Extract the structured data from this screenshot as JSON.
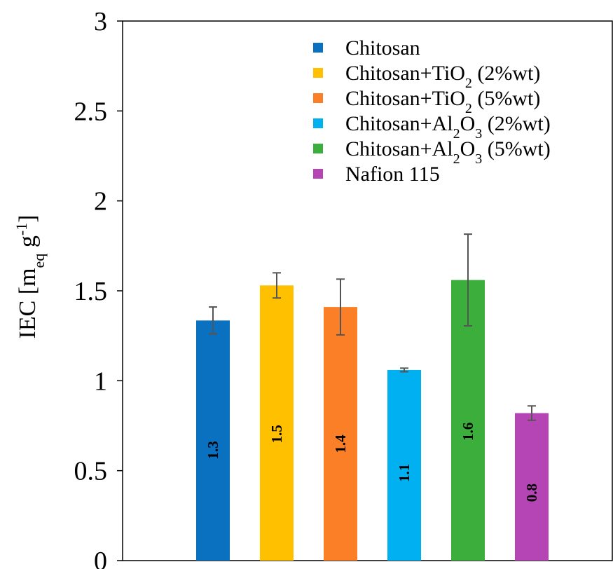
{
  "chart_data": {
    "type": "bar",
    "ylabel": "IEC [m_eq g^-1]",
    "ylabel_parts": {
      "main": "IEC [m",
      "sub": "eq",
      "mid": " g",
      "sup": "-1",
      "end": "]"
    },
    "ylim": [
      0,
      3
    ],
    "yticks": [
      "0",
      "0.5",
      "1",
      "1.5",
      "2",
      "2.5",
      "3"
    ],
    "ytick_values": [
      0,
      0.5,
      1,
      1.5,
      2,
      2.5,
      3
    ],
    "grid": false,
    "legend_position": "top-right",
    "series": [
      {
        "name": "Chitosan",
        "legend": {
          "pre": "Chitosan",
          "sub": "",
          "post": ""
        },
        "value": 1.335,
        "error": 0.075,
        "label": "1.3",
        "color": "#0a70c0"
      },
      {
        "name": "Chitosan+TiO2 (2%wt)",
        "legend": {
          "pre": "Chitosan+TiO",
          "sub": "2",
          "post": " (2%wt)"
        },
        "value": 1.53,
        "error": 0.07,
        "label": "1.5",
        "color": "#ffc000"
      },
      {
        "name": "Chitosan+TiO2 (5%wt)",
        "legend": {
          "pre": "Chitosan+TiO",
          "sub": "2",
          "post": " (5%wt)"
        },
        "value": 1.41,
        "error": 0.155,
        "label": "1.4",
        "color": "#fb7f27"
      },
      {
        "name": "Chitosan+Al2O3 (2%wt)",
        "legend": {
          "pre": "Chitosan+Al",
          "sub": "2",
          "mid": "O",
          "sub2": "3",
          "post": " (2%wt)"
        },
        "value": 1.06,
        "error": 0.01,
        "label": "1.1",
        "color": "#00b0f0"
      },
      {
        "name": "Chitosan+Al2O3 (5%wt)",
        "legend": {
          "pre": "Chitosan+Al",
          "sub": "2",
          "mid": "O",
          "sub2": "3",
          "post": " (5%wt)"
        },
        "value": 1.56,
        "error": 0.255,
        "label": "1.6",
        "color": "#3cae3c"
      },
      {
        "name": "Nafion 115",
        "legend": {
          "pre": "Nafion 115",
          "sub": "",
          "post": ""
        },
        "value": 0.82,
        "error": 0.04,
        "label": "0.8",
        "color": "#b544b5"
      }
    ]
  }
}
